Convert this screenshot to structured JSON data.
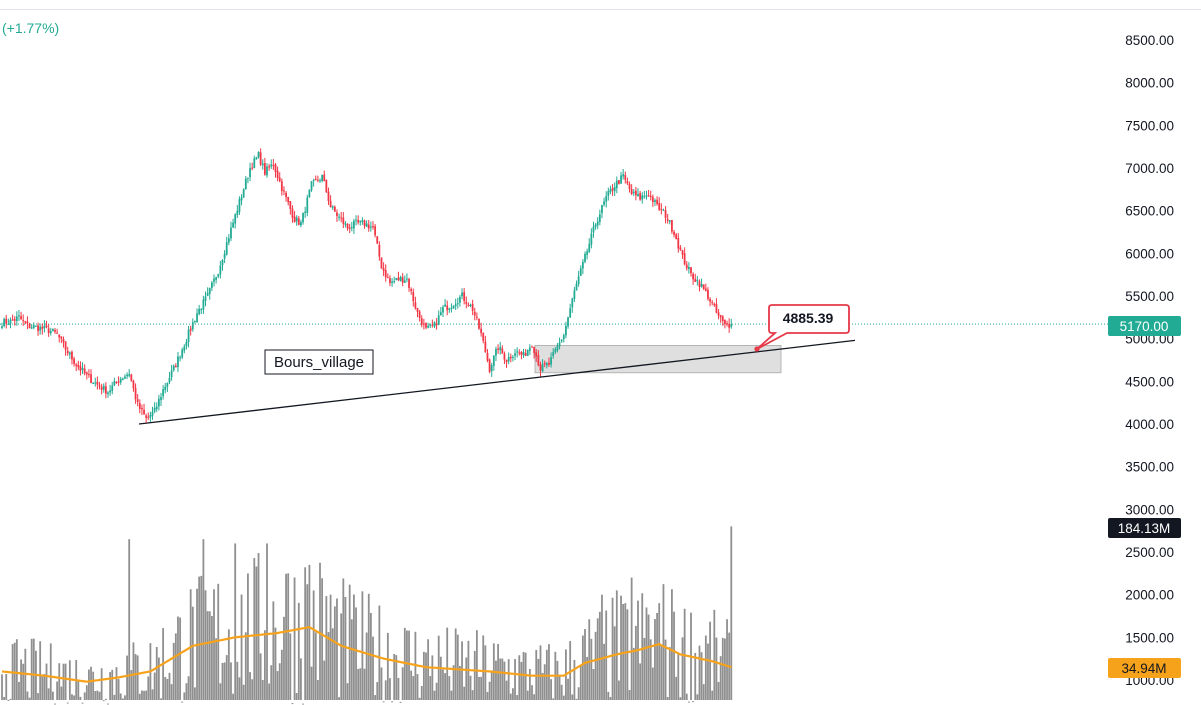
{
  "header": {
    "change_text": "(+1.77%)"
  },
  "colors": {
    "up": "#22ab94",
    "down": "#f23645",
    "volume": "#8f8f8f",
    "ma": "#f7a21b",
    "price_line": "#22ab94",
    "trendline": "#131722",
    "zone": "#d9d9d9",
    "callout": "#e53948",
    "vol_badge": "#131722",
    "ma_badge": "#f7a21b"
  },
  "chart_data": {
    "type": "candlestick",
    "price_axis": {
      "ticks": [
        "8500.00",
        "8000.00",
        "7500.00",
        "7000.00",
        "6500.00",
        "6000.00",
        "5500.00",
        "5000.00",
        "4500.00",
        "4000.00",
        "3500.00",
        "3000.00",
        "2500.00",
        "2000.00",
        "1500.00",
        "1000.00"
      ],
      "range": [
        1000,
        8750
      ]
    },
    "last_price": {
      "value": 5170,
      "label": "5170.00"
    },
    "volume_last": {
      "label": "184.13M"
    },
    "volume_ma_last": {
      "label": "34.94M"
    },
    "callout": {
      "label": "4885.39",
      "value": 4885.39
    },
    "text_note": "Bours_village",
    "trendline": {
      "from_price": 4000,
      "to_price": 4980
    },
    "support_zone": {
      "top": 4920,
      "bottom": 4600
    },
    "waypoints": [
      [
        0,
        5190
      ],
      [
        4,
        5200
      ],
      [
        8,
        5250
      ],
      [
        12,
        5150
      ],
      [
        17,
        5130
      ],
      [
        22,
        5100
      ],
      [
        26,
        5050
      ],
      [
        30,
        4880
      ],
      [
        35,
        4700
      ],
      [
        40,
        4560
      ],
      [
        45,
        4460
      ],
      [
        50,
        4380
      ],
      [
        55,
        4520
      ],
      [
        60,
        4600
      ],
      [
        64,
        4220
      ],
      [
        68,
        4060
      ],
      [
        72,
        4150
      ],
      [
        76,
        4400
      ],
      [
        82,
        4700
      ],
      [
        87,
        5000
      ],
      [
        92,
        5300
      ],
      [
        97,
        5500
      ],
      [
        102,
        5800
      ],
      [
        107,
        6200
      ],
      [
        112,
        6600
      ],
      [
        117,
        7000
      ],
      [
        121,
        7150
      ],
      [
        124,
        6950
      ],
      [
        128,
        7050
      ],
      [
        133,
        6700
      ],
      [
        138,
        6400
      ],
      [
        141,
        6350
      ],
      [
        146,
        6800
      ],
      [
        151,
        6900
      ],
      [
        155,
        6550
      ],
      [
        158,
        6450
      ],
      [
        163,
        6300
      ],
      [
        167,
        6350
      ],
      [
        171,
        6350
      ],
      [
        175,
        6300
      ],
      [
        179,
        5850
      ],
      [
        183,
        5650
      ],
      [
        187,
        5700
      ],
      [
        191,
        5700
      ],
      [
        196,
        5300
      ],
      [
        200,
        5100
      ],
      [
        204,
        5150
      ],
      [
        208,
        5350
      ],
      [
        212,
        5400
      ],
      [
        217,
        5500
      ],
      [
        222,
        5350
      ],
      [
        226,
        5050
      ],
      [
        230,
        4650
      ],
      [
        234,
        4900
      ],
      [
        238,
        4750
      ],
      [
        242,
        4850
      ],
      [
        246,
        4800
      ],
      [
        250,
        4950
      ],
      [
        254,
        4650
      ],
      [
        258,
        4700
      ],
      [
        261,
        4850
      ],
      [
        265,
        5050
      ],
      [
        270,
        5550
      ],
      [
        275,
        5950
      ],
      [
        280,
        6350
      ],
      [
        285,
        6650
      ],
      [
        289,
        6800
      ],
      [
        293,
        6900
      ],
      [
        297,
        6700
      ],
      [
        301,
        6650
      ],
      [
        305,
        6700
      ],
      [
        309,
        6550
      ],
      [
        313,
        6450
      ],
      [
        317,
        6250
      ],
      [
        321,
        5950
      ],
      [
        325,
        5750
      ],
      [
        329,
        5650
      ],
      [
        333,
        5500
      ],
      [
        337,
        5300
      ],
      [
        341,
        5150
      ],
      [
        344,
        5170
      ]
    ],
    "volume_waypoints": [
      [
        0,
        1100
      ],
      [
        20,
        1050
      ],
      [
        40,
        980
      ],
      [
        55,
        1030
      ],
      [
        70,
        1100
      ],
      [
        90,
        1400
      ],
      [
        110,
        1500
      ],
      [
        130,
        1550
      ],
      [
        145,
        1620
      ],
      [
        160,
        1400
      ],
      [
        180,
        1250
      ],
      [
        200,
        1150
      ],
      [
        230,
        1100
      ],
      [
        250,
        1050
      ],
      [
        265,
        1050
      ],
      [
        275,
        1200
      ],
      [
        290,
        1300
      ],
      [
        300,
        1350
      ],
      [
        310,
        1420
      ],
      [
        320,
        1300
      ],
      [
        335,
        1220
      ],
      [
        344,
        1150
      ]
    ],
    "volume_spikes": [
      [
        60,
        2650
      ],
      [
        95,
        2650
      ],
      [
        110,
        2600
      ],
      [
        125,
        2600
      ],
      [
        135,
        2250
      ],
      [
        145,
        2350
      ],
      [
        155,
        2000
      ],
      [
        167,
        1850
      ],
      [
        283,
        2000
      ],
      [
        290,
        2050
      ],
      [
        297,
        2200
      ],
      [
        304,
        1850
      ],
      [
        310,
        1900
      ],
      [
        317,
        1800
      ],
      [
        344,
        2800
      ]
    ]
  }
}
